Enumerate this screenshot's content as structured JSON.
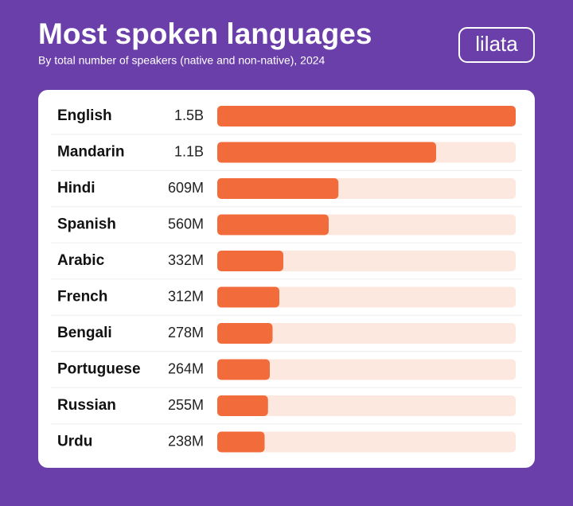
{
  "chart_data": {
    "type": "bar",
    "orientation": "horizontal",
    "title": "Most spoken languages",
    "subtitle": "By total number of speakers (native and non-native), 2024",
    "brand": "lilata",
    "categories": [
      "English",
      "Mandarin",
      "Hindi",
      "Spanish",
      "Arabic",
      "French",
      "Bengali",
      "Portuguese",
      "Russian",
      "Urdu"
    ],
    "values": [
      1500000000,
      1100000000,
      609000000,
      560000000,
      332000000,
      312000000,
      278000000,
      264000000,
      255000000,
      238000000
    ],
    "value_labels": [
      "1.5B",
      "1.1B",
      "609M",
      "560M",
      "332M",
      "312M",
      "278M",
      "264M",
      "255M",
      "238M"
    ],
    "color": "#f26b3a"
  }
}
